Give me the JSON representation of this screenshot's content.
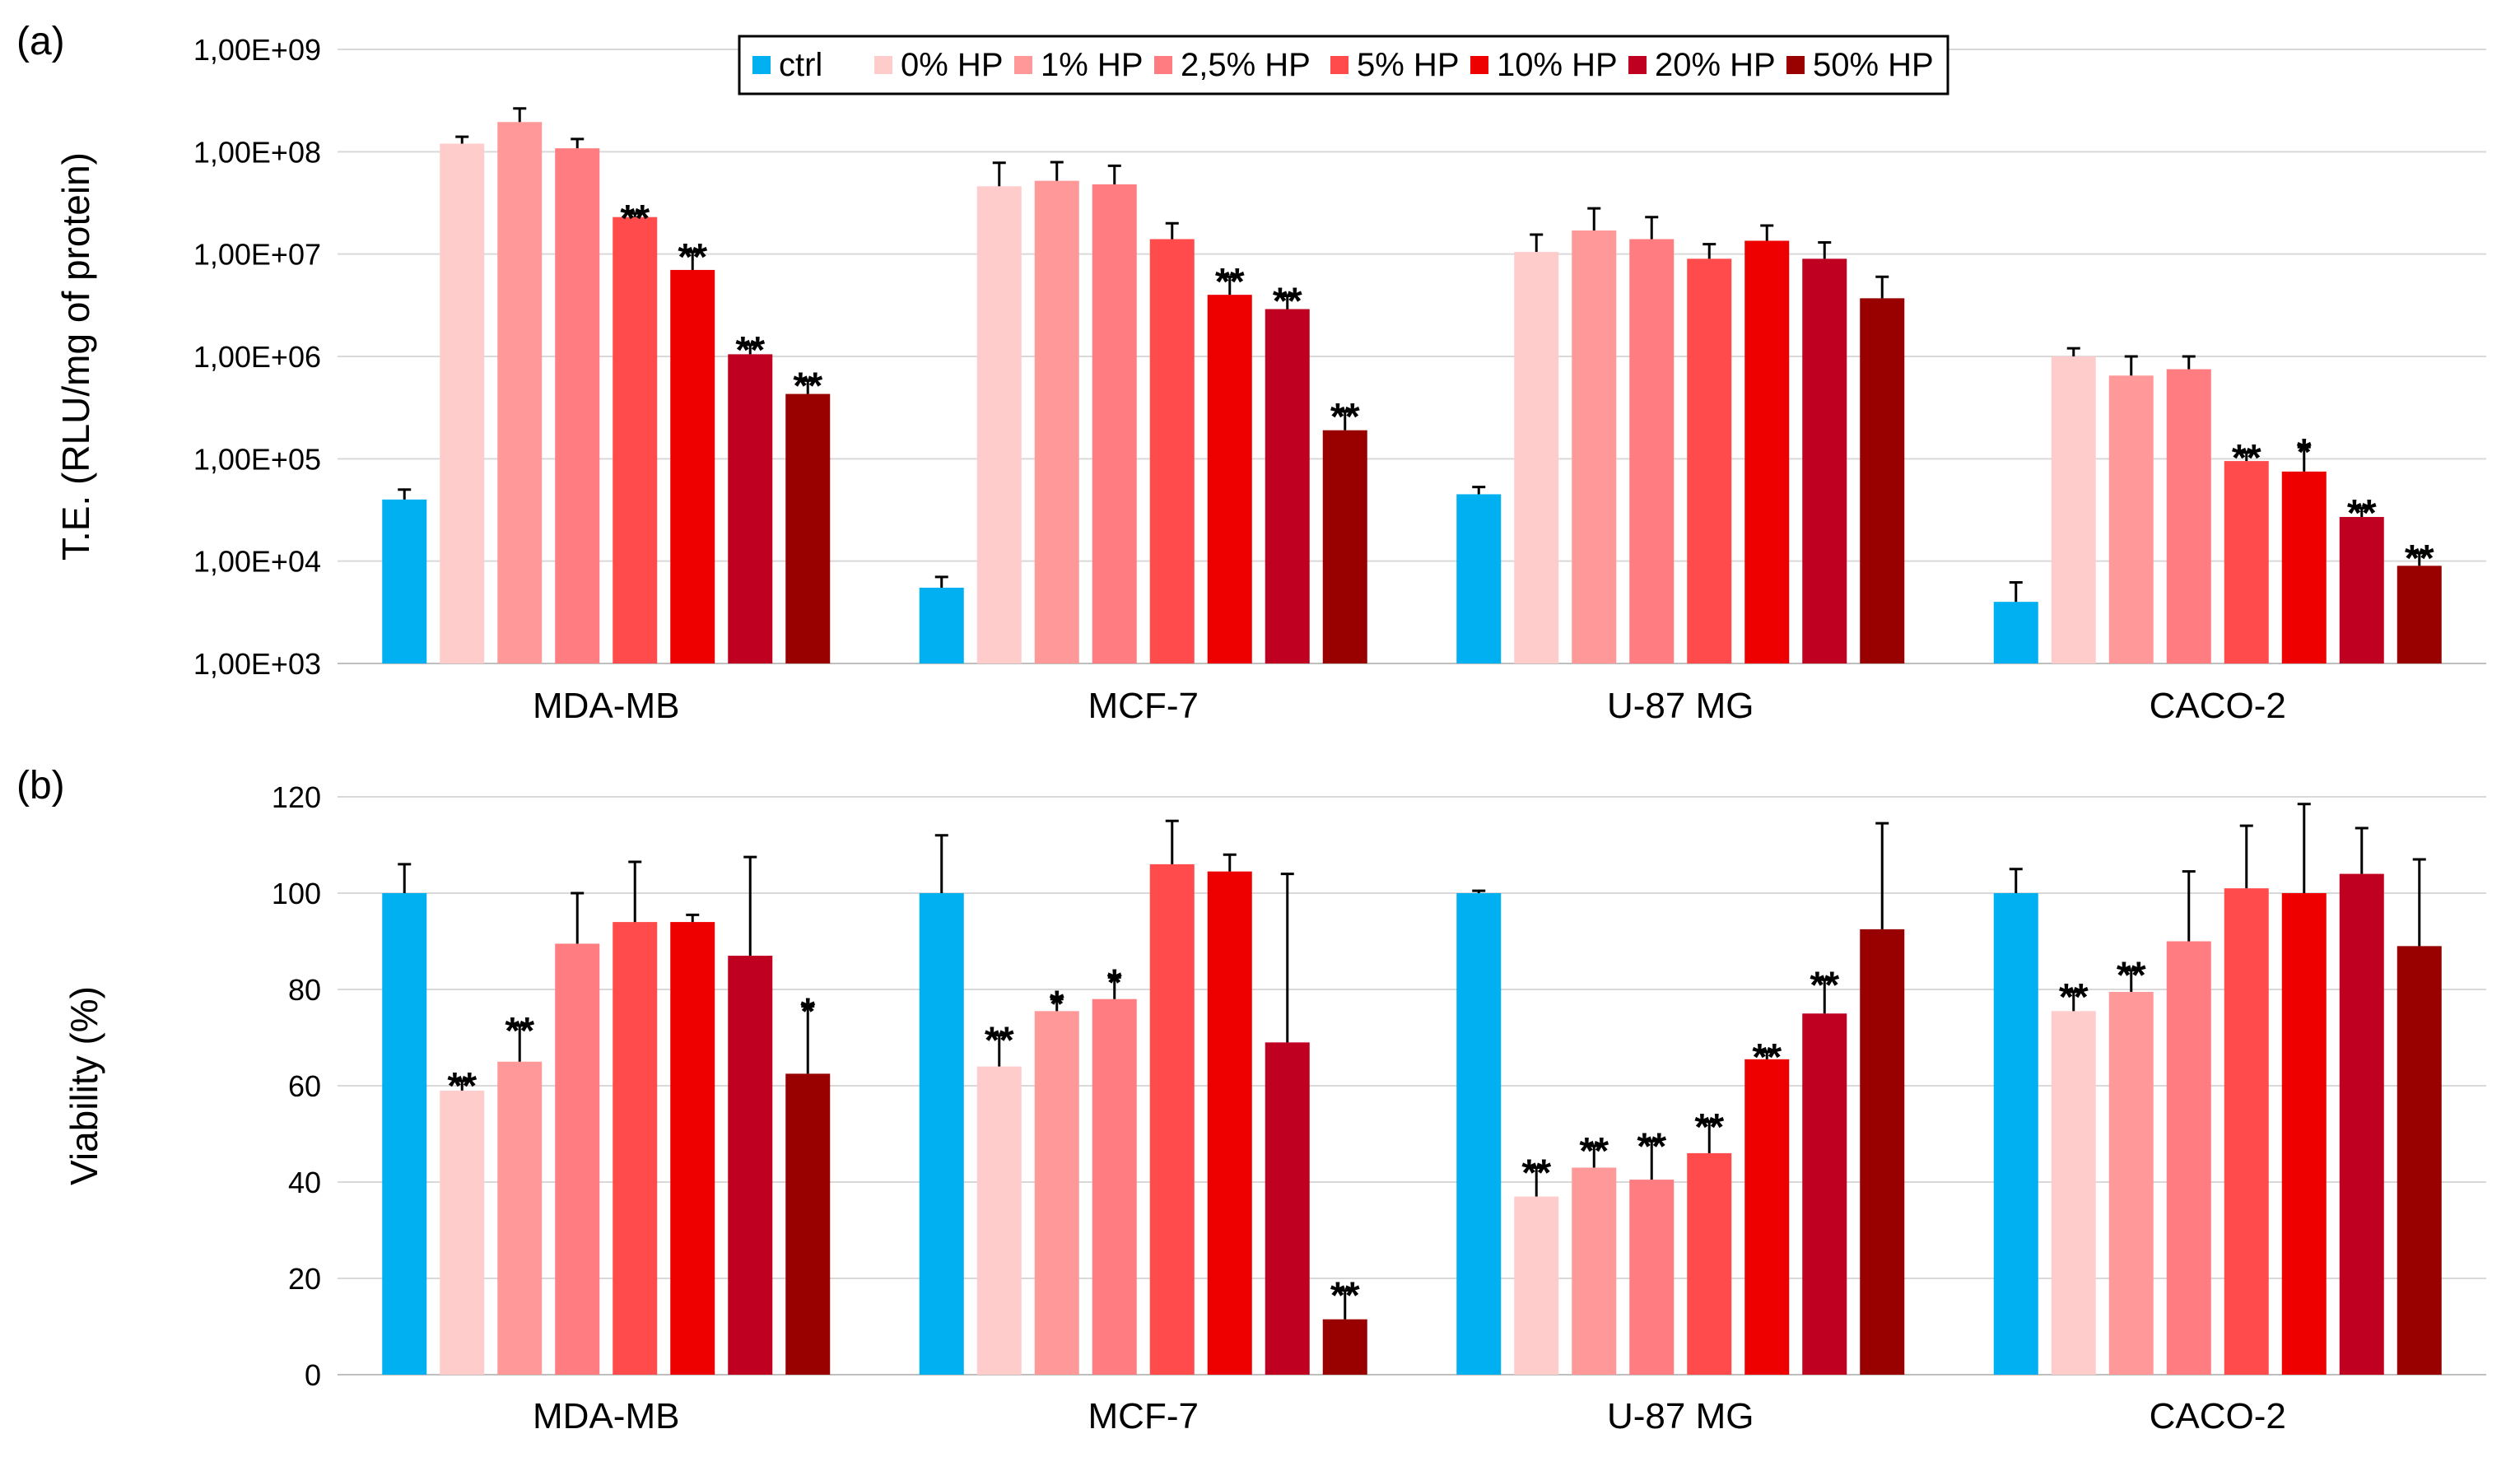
{
  "colors": {
    "ctrl": "#00b0f0",
    "0% HP": "#ffcccc",
    "1% HP": "#ff9999",
    "2,5% HP": "#ff7c80",
    "5% HP": "#ff4b4b",
    "10% HP": "#ee0000",
    "20% HP": "#c00020",
    "50% HP": "#990000"
  },
  "legend": {
    "position": "top-center",
    "items": [
      "ctrl",
      "0% HP",
      "1% HP",
      "2,5% HP",
      "5% HP",
      "10% HP",
      "20% HP",
      "50% HP"
    ]
  },
  "chart_data": [
    {
      "panel_label": "(a)",
      "type": "bar",
      "yscale": "log",
      "ylabel": "T.E. (RLU/mg of protein)",
      "ylim": [
        1000,
        1000000000
      ],
      "yticks": [
        {
          "value": 1000,
          "label": "1,00E+03"
        },
        {
          "value": 10000,
          "label": "1,00E+04"
        },
        {
          "value": 100000,
          "label": "1,00E+05"
        },
        {
          "value": 1000000,
          "label": "1,00E+06"
        },
        {
          "value": 10000000,
          "label": "1,00E+07"
        },
        {
          "value": 100000000,
          "label": "1,00E+08"
        },
        {
          "value": 1000000000,
          "label": "1,00E+09"
        }
      ],
      "grid": true,
      "categories": [
        "MDA-MB",
        "MCF-7",
        "U-87 MG",
        "CACO-2"
      ],
      "series": [
        {
          "name": "ctrl",
          "values": [
            40000,
            5500,
            45000,
            4000
          ],
          "errors": [
            10000,
            1500,
            8000,
            2200
          ],
          "significance": [
            "",
            "",
            "",
            ""
          ]
        },
        {
          "name": "0% HP",
          "values": [
            120000000,
            46000000,
            10500000,
            1000000
          ],
          "errors": [
            20000000,
            32000000,
            5000000,
            200000
          ],
          "significance": [
            "",
            "",
            "",
            ""
          ]
        },
        {
          "name": "1% HP",
          "values": [
            195000000,
            52000000,
            17000000,
            650000
          ],
          "errors": [
            70000000,
            27000000,
            11000000,
            350000
          ],
          "significance": [
            "",
            "",
            "",
            ""
          ]
        },
        {
          "name": "2,5% HP",
          "values": [
            108000000,
            48000000,
            14000000,
            750000
          ],
          "errors": [
            25000000,
            25000000,
            9000000,
            250000
          ],
          "significance": [
            "",
            "",
            "",
            ""
          ]
        },
        {
          "name": "5% HP",
          "values": [
            23000000,
            14000000,
            9000000,
            95000
          ],
          "errors": [
            2000000,
            6000000,
            3500000,
            20000
          ],
          "significance": [
            "**",
            "",
            "",
            "**"
          ]
        },
        {
          "name": "10% HP",
          "values": [
            7000000,
            4000000,
            13500000,
            75000
          ],
          "errors": [
            3500000,
            2000000,
            5500000,
            55000
          ],
          "significance": [
            "**",
            "**",
            "",
            "*"
          ]
        },
        {
          "name": "20% HP",
          "values": [
            1050000,
            2900000,
            9000000,
            27000
          ],
          "errors": [
            250000,
            1000000,
            4000000,
            6000
          ],
          "significance": [
            "**",
            "**",
            "",
            "**"
          ]
        },
        {
          "name": "50% HP",
          "values": [
            430000,
            190000,
            3700000,
            9000
          ],
          "errors": [
            150000,
            100000,
            2300000,
            3000
          ],
          "significance": [
            "**",
            "**",
            "",
            "**"
          ]
        }
      ]
    },
    {
      "panel_label": "(b)",
      "type": "bar",
      "yscale": "linear",
      "ylabel": "Viability (%)",
      "ylim": [
        0,
        120
      ],
      "yticks": [
        {
          "value": 0,
          "label": "0"
        },
        {
          "value": 20,
          "label": "20"
        },
        {
          "value": 40,
          "label": "40"
        },
        {
          "value": 60,
          "label": "60"
        },
        {
          "value": 80,
          "label": "80"
        },
        {
          "value": 100,
          "label": "100"
        },
        {
          "value": 120,
          "label": "120"
        }
      ],
      "grid": true,
      "categories": [
        "MDA-MB",
        "MCF-7",
        "U-87 MG",
        "CACO-2"
      ],
      "series": [
        {
          "name": "ctrl",
          "values": [
            100,
            100,
            100,
            100
          ],
          "errors": [
            6,
            12,
            0.5,
            5
          ],
          "significance": [
            "",
            "",
            "",
            ""
          ]
        },
        {
          "name": "0% HP",
          "values": [
            59,
            64,
            37,
            75.5
          ],
          "errors": [
            2,
            6.5,
            6,
            4
          ],
          "significance": [
            "**",
            "**",
            "**",
            "**"
          ]
        },
        {
          "name": "1% HP",
          "values": [
            65,
            75.5,
            43,
            79.5
          ],
          "errors": [
            7.5,
            2.5,
            4.5,
            4.5
          ],
          "significance": [
            "**",
            "*",
            "**",
            "**"
          ]
        },
        {
          "name": "2,5% HP",
          "values": [
            89.5,
            78,
            40.5,
            90
          ],
          "errors": [
            10.5,
            4.5,
            8,
            14.5
          ],
          "significance": [
            "",
            "*",
            "**",
            ""
          ]
        },
        {
          "name": "5% HP",
          "values": [
            94,
            106,
            46,
            101
          ],
          "errors": [
            12.5,
            9,
            6.5,
            13
          ],
          "significance": [
            "",
            "",
            "**",
            ""
          ]
        },
        {
          "name": "10% HP",
          "values": [
            94,
            104.5,
            65.5,
            100
          ],
          "errors": [
            1.5,
            3.5,
            1.5,
            18.5
          ],
          "significance": [
            "",
            "",
            "**",
            ""
          ]
        },
        {
          "name": "20% HP",
          "values": [
            87,
            69,
            75,
            104
          ],
          "errors": [
            20.5,
            35,
            7,
            9.5
          ],
          "significance": [
            "",
            "",
            "**",
            ""
          ]
        },
        {
          "name": "50% HP",
          "values": [
            62.5,
            11.5,
            92.5,
            89
          ],
          "errors": [
            14,
            6,
            22,
            18
          ],
          "significance": [
            "*",
            "**",
            "",
            ""
          ]
        }
      ]
    }
  ]
}
